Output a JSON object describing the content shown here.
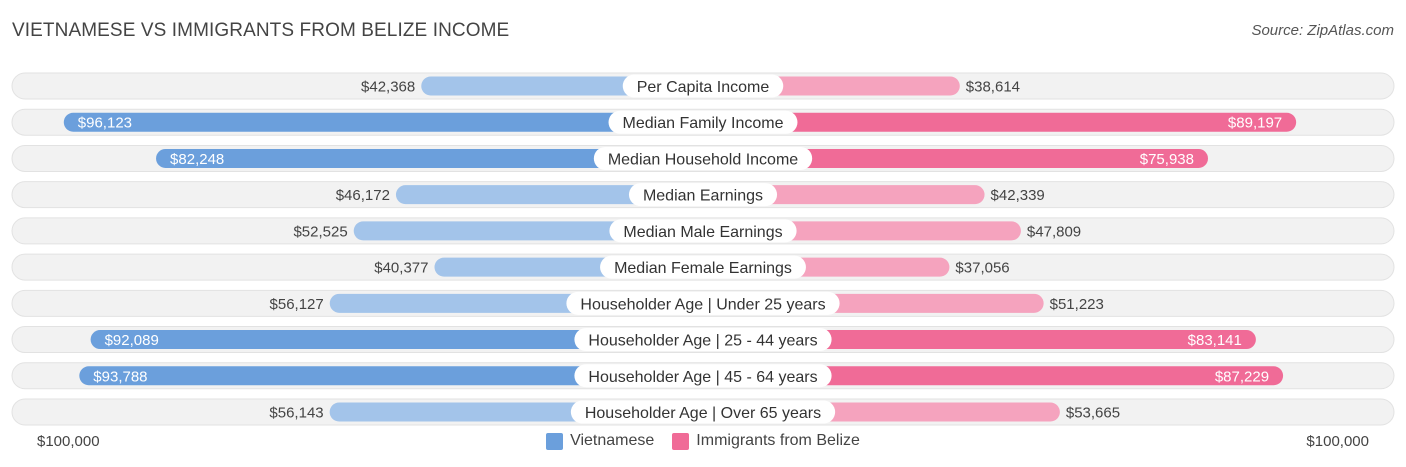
{
  "title": "VIETNAMESE VS IMMIGRANTS FROM BELIZE INCOME",
  "source": "Source: ZipAtlas.com",
  "axis": {
    "left_label": "$100,000",
    "right_label": "$100,000"
  },
  "legend": {
    "left": "Vietnamese",
    "right": "Immigrants from Belize"
  },
  "colors": {
    "left_strong": "#6b9fdc",
    "left_light": "#a3c4ea",
    "right_strong": "#f06b97",
    "right_light": "#f5a3be",
    "row_bg": "#f2f2f2",
    "row_border": "#e2e2e2"
  },
  "chart_data": {
    "type": "bar",
    "orientation": "horizontal-diverging",
    "title": "VIETNAMESE VS IMMIGRANTS FROM BELIZE INCOME",
    "xlim": [
      0,
      100000
    ],
    "categories": [
      "Per Capita Income",
      "Median Family Income",
      "Median Household Income",
      "Median Earnings",
      "Median Male Earnings",
      "Median Female Earnings",
      "Householder Age | Under 25 years",
      "Householder Age | 25 - 44 years",
      "Householder Age | 45 - 64 years",
      "Householder Age | Over 65 years"
    ],
    "series": [
      {
        "name": "Vietnamese",
        "values": [
          42368,
          96123,
          82248,
          46172,
          52525,
          40377,
          56127,
          92089,
          93788,
          56143
        ],
        "labels": [
          "$42,368",
          "$96,123",
          "$82,248",
          "$46,172",
          "$52,525",
          "$40,377",
          "$56,127",
          "$92,089",
          "$93,788",
          "$56,143"
        ]
      },
      {
        "name": "Immigrants from Belize",
        "values": [
          38614,
          89197,
          75938,
          42339,
          47809,
          37056,
          51223,
          83141,
          87229,
          53665
        ],
        "labels": [
          "$38,614",
          "$89,197",
          "$75,938",
          "$42,339",
          "$47,809",
          "$37,056",
          "$51,223",
          "$83,141",
          "$87,229",
          "$53,665"
        ]
      }
    ]
  }
}
